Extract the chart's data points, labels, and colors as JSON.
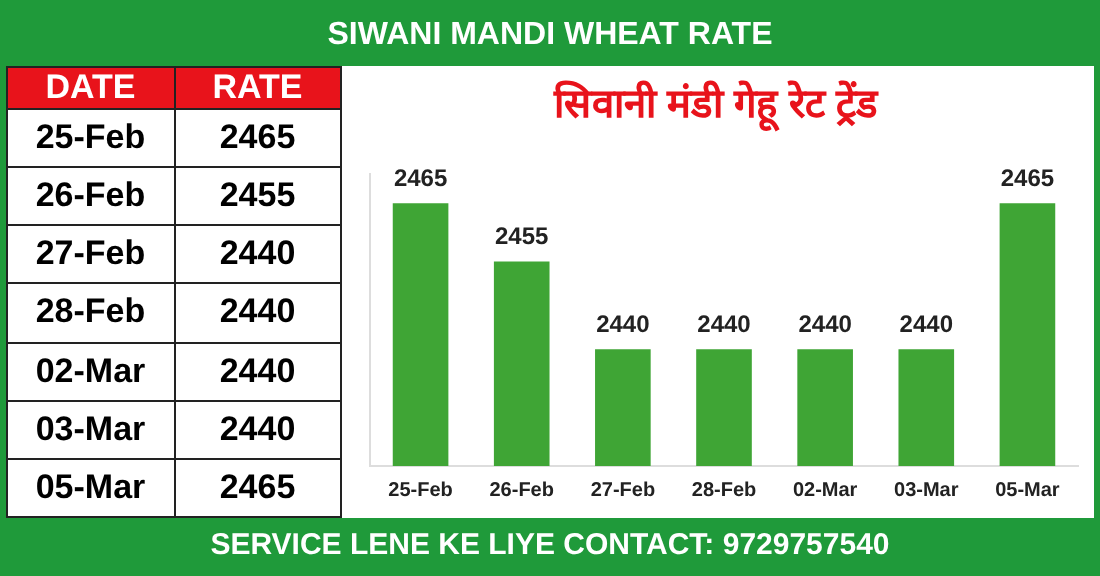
{
  "chart_data": {
    "type": "bar",
    "title": "SIWANI MANDI WHEAT RATE",
    "subtitle": "सिवानी मंडी गेहू रेट ट्रेंड",
    "categories": [
      "25-Feb",
      "26-Feb",
      "27-Feb",
      "28-Feb",
      "02-Mar",
      "03-Mar",
      "05-Mar"
    ],
    "values": [
      2465,
      2455,
      2440,
      2440,
      2440,
      2440,
      2465
    ],
    "value_labels": [
      "2465",
      "2455",
      "2440",
      "2440",
      "2440",
      "2440",
      "2465"
    ],
    "color": "#3fa535",
    "ylim": [
      2420,
      2470
    ],
    "tick_labels": "x",
    "annotations": [
      "DATE",
      "RATE",
      "SERVICE LENE KE LIYE CONTACT: 9729757540"
    ]
  }
}
